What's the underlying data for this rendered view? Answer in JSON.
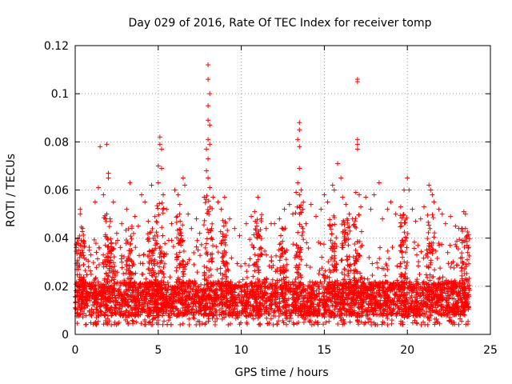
{
  "chart_data": {
    "type": "scatter",
    "title": "Day 029 of 2016, Rate Of TEC Index for receiver tomp",
    "xlabel": "GPS time / hours",
    "ylabel": "ROTI / TECUs",
    "xlim": [
      0,
      25
    ],
    "ylim": [
      0,
      0.12
    ],
    "x_ticks": [
      0,
      5,
      10,
      15,
      20,
      25
    ],
    "x_tick_labels": [
      "0",
      "5",
      "10",
      "15",
      "20",
      "25"
    ],
    "y_ticks": [
      0,
      0.02,
      0.04,
      0.06,
      0.08,
      0.1,
      0.12
    ],
    "y_tick_labels": [
      "0",
      "0.02",
      "0.04",
      "0.06",
      "0.08",
      "0.1",
      "0.12"
    ],
    "grid": true,
    "marker": "+",
    "series_color": "#ff0000",
    "series": [
      {
        "name": "ROTI",
        "points": [
          [
            0.3,
            0.052
          ],
          [
            0.3,
            0.05
          ],
          [
            0.2,
            0.028
          ],
          [
            0.5,
            0.039
          ],
          [
            0.1,
            0.027
          ],
          [
            1.5,
            0.078
          ],
          [
            1.9,
            0.079
          ],
          [
            1.2,
            0.055
          ],
          [
            1.4,
            0.061
          ],
          [
            1.7,
            0.058
          ],
          [
            2.0,
            0.067
          ],
          [
            2.0,
            0.065
          ],
          [
            1.9,
            0.05
          ],
          [
            2.1,
            0.048
          ],
          [
            2.3,
            0.055
          ],
          [
            2.5,
            0.042
          ],
          [
            2.8,
            0.046
          ],
          [
            3.1,
            0.052
          ],
          [
            3.3,
            0.063
          ],
          [
            3.6,
            0.049
          ],
          [
            3.8,
            0.045
          ],
          [
            4.0,
            0.058
          ],
          [
            4.2,
            0.055
          ],
          [
            4.4,
            0.047
          ],
          [
            4.6,
            0.062
          ],
          [
            4.8,
            0.049
          ],
          [
            5.1,
            0.082
          ],
          [
            5.1,
            0.079
          ],
          [
            5.2,
            0.077
          ],
          [
            5.0,
            0.07
          ],
          [
            5.2,
            0.069
          ],
          [
            5.0,
            0.063
          ],
          [
            5.3,
            0.058
          ],
          [
            5.5,
            0.052
          ],
          [
            5.8,
            0.046
          ],
          [
            6.0,
            0.06
          ],
          [
            6.2,
            0.058
          ],
          [
            6.3,
            0.054
          ],
          [
            6.5,
            0.065
          ],
          [
            6.6,
            0.062
          ],
          [
            6.8,
            0.05
          ],
          [
            7.0,
            0.044
          ],
          [
            7.3,
            0.048
          ],
          [
            7.5,
            0.042
          ],
          [
            8.0,
            0.112
          ],
          [
            8.0,
            0.106
          ],
          [
            8.1,
            0.1
          ],
          [
            8.0,
            0.095
          ],
          [
            8.0,
            0.089
          ],
          [
            8.1,
            0.087
          ],
          [
            8.0,
            0.081
          ],
          [
            8.1,
            0.079
          ],
          [
            7.9,
            0.077
          ],
          [
            8.0,
            0.073
          ],
          [
            7.9,
            0.068
          ],
          [
            8.0,
            0.065
          ],
          [
            8.1,
            0.061
          ],
          [
            8.3,
            0.057
          ],
          [
            8.6,
            0.055
          ],
          [
            8.8,
            0.052
          ],
          [
            9.0,
            0.057
          ],
          [
            9.3,
            0.048
          ],
          [
            9.6,
            0.044
          ],
          [
            9.9,
            0.041
          ],
          [
            10.3,
            0.046
          ],
          [
            10.6,
            0.049
          ],
          [
            10.8,
            0.051
          ],
          [
            11.0,
            0.057
          ],
          [
            11.2,
            0.048
          ],
          [
            11.5,
            0.044
          ],
          [
            11.8,
            0.046
          ],
          [
            12.0,
            0.046
          ],
          [
            12.3,
            0.048
          ],
          [
            12.6,
            0.052
          ],
          [
            12.9,
            0.054
          ],
          [
            13.1,
            0.05
          ],
          [
            13.3,
            0.059
          ],
          [
            13.5,
            0.088
          ],
          [
            13.5,
            0.085
          ],
          [
            13.4,
            0.081
          ],
          [
            13.5,
            0.078
          ],
          [
            13.5,
            0.069
          ],
          [
            13.4,
            0.063
          ],
          [
            13.6,
            0.06
          ],
          [
            13.5,
            0.058
          ],
          [
            13.7,
            0.052
          ],
          [
            13.9,
            0.046
          ],
          [
            14.2,
            0.054
          ],
          [
            14.5,
            0.049
          ],
          [
            14.8,
            0.052
          ],
          [
            15.0,
            0.058
          ],
          [
            15.2,
            0.055
          ],
          [
            15.5,
            0.062
          ],
          [
            15.6,
            0.06
          ],
          [
            15.8,
            0.071
          ],
          [
            16.0,
            0.065
          ],
          [
            16.1,
            0.057
          ],
          [
            16.3,
            0.054
          ],
          [
            16.5,
            0.05
          ],
          [
            16.7,
            0.048
          ],
          [
            17.0,
            0.106
          ],
          [
            17.0,
            0.105
          ],
          [
            17.0,
            0.081
          ],
          [
            17.0,
            0.079
          ],
          [
            17.0,
            0.077
          ],
          [
            16.9,
            0.059
          ],
          [
            17.1,
            0.058
          ],
          [
            17.2,
            0.053
          ],
          [
            17.5,
            0.057
          ],
          [
            17.8,
            0.052
          ],
          [
            18.0,
            0.058
          ],
          [
            18.3,
            0.063
          ],
          [
            18.5,
            0.048
          ],
          [
            18.8,
            0.052
          ],
          [
            19.0,
            0.055
          ],
          [
            19.3,
            0.05
          ],
          [
            19.6,
            0.053
          ],
          [
            19.8,
            0.06
          ],
          [
            20.0,
            0.065
          ],
          [
            20.1,
            0.06
          ],
          [
            20.3,
            0.052
          ],
          [
            20.5,
            0.047
          ],
          [
            20.8,
            0.048
          ],
          [
            21.0,
            0.053
          ],
          [
            21.3,
            0.062
          ],
          [
            21.4,
            0.06
          ],
          [
            21.5,
            0.058
          ],
          [
            21.6,
            0.055
          ],
          [
            21.9,
            0.052
          ],
          [
            22.1,
            0.05
          ],
          [
            22.3,
            0.046
          ],
          [
            22.6,
            0.049
          ],
          [
            22.9,
            0.045
          ],
          [
            23.1,
            0.044
          ],
          [
            23.4,
            0.051
          ],
          [
            23.5,
            0.05
          ],
          [
            23.5,
            0.044
          ],
          [
            23.6,
            0.041
          ]
        ],
        "dense_band": {
          "x_range": [
            0,
            23.7
          ],
          "typical_min": 0.004,
          "typical_max": 0.035,
          "median": 0.013
        }
      }
    ]
  }
}
